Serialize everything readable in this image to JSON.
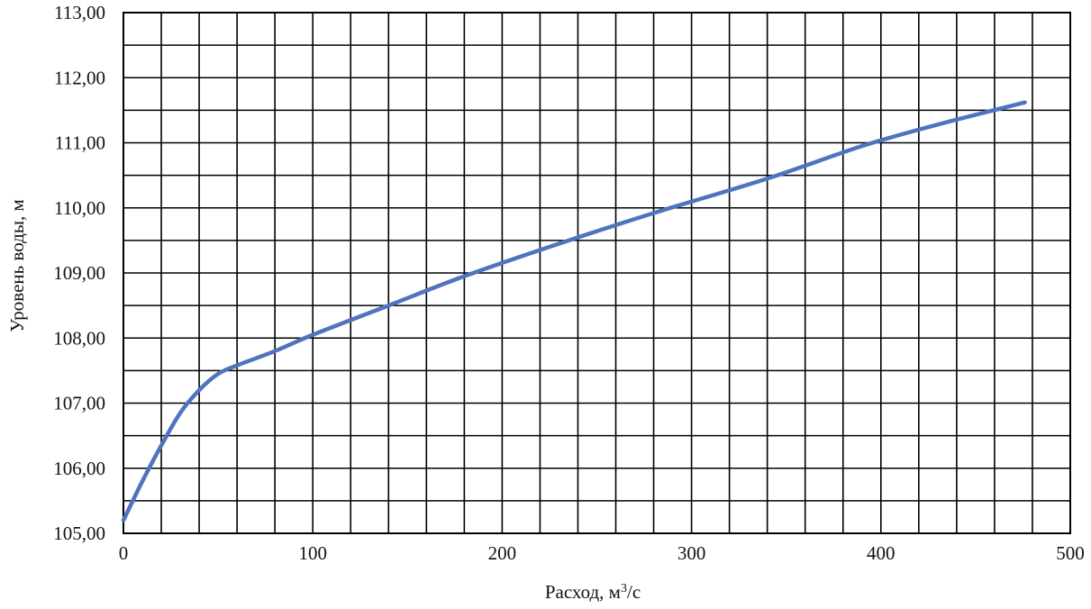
{
  "chart_data": {
    "type": "line",
    "title": "",
    "xlabel_base": "Расход, м",
    "xlabel_sup": "3",
    "xlabel_tail": "/с",
    "ylabel": "Уровень воды, м",
    "xlim": [
      0,
      500
    ],
    "ylim": [
      105,
      113
    ],
    "x_ticks": [
      "0",
      "100",
      "200",
      "300",
      "400",
      "500"
    ],
    "y_ticks": [
      "105,00",
      "106,00",
      "107,00",
      "108,00",
      "109,00",
      "110,00",
      "111,00",
      "112,00",
      "113,00"
    ],
    "grid": true,
    "line_color": "#4f74bd",
    "series": [
      {
        "x": [
          0,
          10,
          20,
          30,
          40,
          50,
          60,
          80,
          100,
          140,
          180,
          230,
          280,
          340,
          390,
          430,
          476
        ],
        "y": [
          105.2,
          105.8,
          106.35,
          106.85,
          107.2,
          107.45,
          107.58,
          107.8,
          108.05,
          108.5,
          108.95,
          109.45,
          109.92,
          110.45,
          110.95,
          111.28,
          111.62
        ]
      }
    ]
  }
}
